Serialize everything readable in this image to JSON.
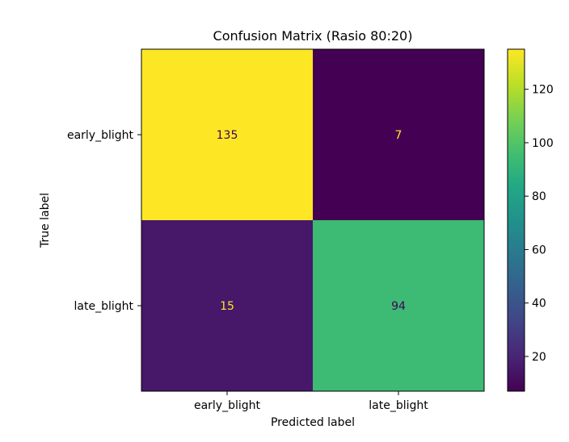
{
  "chart_data": {
    "type": "heatmap",
    "title": "Confusion Matrix (Rasio 80:20)",
    "xlabel": "Predicted label",
    "ylabel": "True label",
    "x_categories": [
      "early_blight",
      "late_blight"
    ],
    "y_categories": [
      "early_blight",
      "late_blight"
    ],
    "values": [
      [
        135,
        7
      ],
      [
        15,
        94
      ]
    ],
    "colormap": "viridis",
    "colorbar": {
      "min": 7,
      "max": 135,
      "ticks": [
        20,
        40,
        60,
        80,
        100,
        120
      ]
    },
    "grid": false
  }
}
